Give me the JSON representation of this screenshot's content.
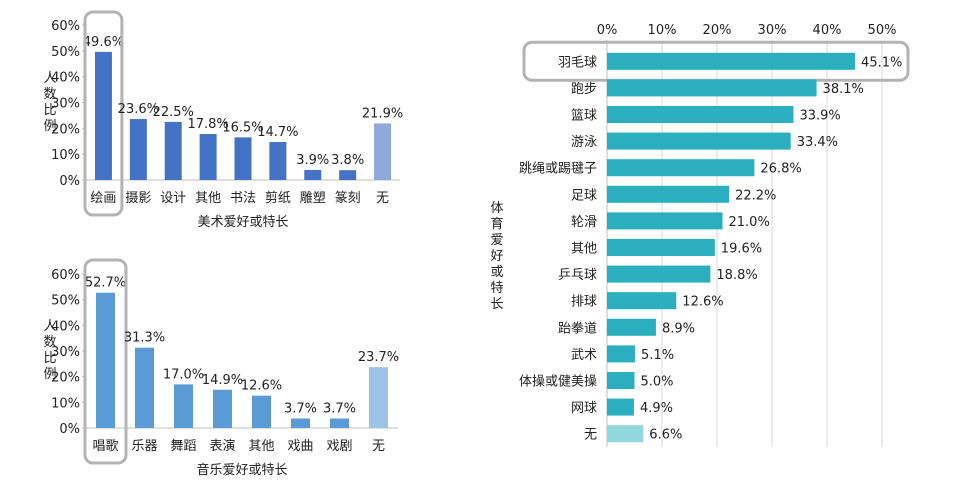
{
  "colors": {
    "art_bar": "#4472C4",
    "art_none": "#8EA9DB",
    "music_bar": "#5B9BD5",
    "music_none": "#9DC3E6",
    "sport_bar": "#2BAFBF",
    "sport_none": "#92D6DE",
    "axis": "#bfbfbf",
    "grid": "#d9d9d9",
    "highlight": "#b3b3b3",
    "text": "#222222"
  },
  "chart_data": [
    {
      "id": "art",
      "type": "bar",
      "title": "",
      "xlabel": "美术爱好或特长",
      "ylabel": "人数比例",
      "ylim": [
        0,
        60
      ],
      "yticks": [
        "0%",
        "10%",
        "20%",
        "30%",
        "40%",
        "50%",
        "60%"
      ],
      "grid": false,
      "categories": [
        "绘画",
        "摄影",
        "设计",
        "其他",
        "书法",
        "剪纸",
        "雕塑",
        "篆刻",
        "无"
      ],
      "values": [
        49.6,
        23.6,
        22.5,
        17.8,
        16.5,
        14.7,
        3.9,
        3.8,
        21.9
      ],
      "labels": [
        "49.6%",
        "23.6%",
        "22.5%",
        "17.8%",
        "16.5%",
        "14.7%",
        "3.9%",
        "3.8%",
        "21.9%"
      ],
      "highlighted": "绘画"
    },
    {
      "id": "music",
      "type": "bar",
      "title": "",
      "xlabel": "音乐爱好或特长",
      "ylabel": "人数比例",
      "ylim": [
        0,
        60
      ],
      "yticks": [
        "0%",
        "10%",
        "20%",
        "30%",
        "40%",
        "50%",
        "60%"
      ],
      "grid": false,
      "categories": [
        "唱歌",
        "乐器",
        "舞蹈",
        "表演",
        "其他",
        "戏曲",
        "戏剧",
        "无"
      ],
      "values": [
        52.7,
        31.3,
        17.0,
        14.9,
        12.6,
        3.7,
        3.7,
        23.7
      ],
      "labels": [
        "52.7%",
        "31.3%",
        "17.0%",
        "14.9%",
        "12.6%",
        "3.7%",
        "3.7%",
        "23.7%"
      ],
      "highlighted": "唱歌"
    },
    {
      "id": "sport",
      "type": "bar",
      "orientation": "horizontal",
      "title": "",
      "xlabel": "",
      "ylabel": "体育爱好或特长",
      "xlim": [
        0,
        50
      ],
      "xticks": [
        "0%",
        "10%",
        "20%",
        "30%",
        "40%",
        "50%"
      ],
      "grid": true,
      "categories": [
        "羽毛球",
        "跑步",
        "篮球",
        "游泳",
        "跳绳或踢毽子",
        "足球",
        "轮滑",
        "其他",
        "乒乓球",
        "排球",
        "跆拳道",
        "武术",
        "体操或健美操",
        "网球",
        "无"
      ],
      "values": [
        45.1,
        38.1,
        33.9,
        33.4,
        26.8,
        22.2,
        21.0,
        19.6,
        18.8,
        12.6,
        8.9,
        5.1,
        5.0,
        4.9,
        6.6
      ],
      "labels": [
        "45.1%",
        "38.1%",
        "33.9%",
        "33.4%",
        "26.8%",
        "22.2%",
        "21.0%",
        "19.6%",
        "18.8%",
        "12.6%",
        "8.9%",
        "5.1%",
        "5.0%",
        "4.9%",
        "6.6%"
      ],
      "highlighted": "羽毛球"
    }
  ]
}
